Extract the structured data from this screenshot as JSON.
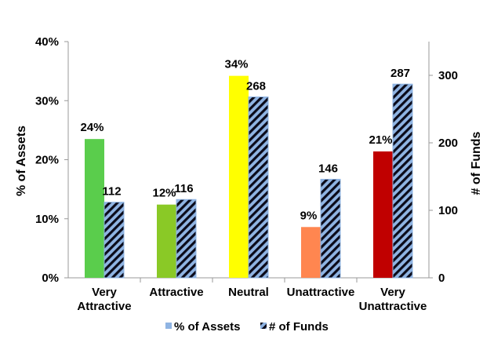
{
  "chart_data": {
    "type": "bar",
    "categories": [
      [
        "Very",
        "Attractive"
      ],
      [
        "Attractive"
      ],
      [
        "Neutral"
      ],
      [
        "Unattractive"
      ],
      [
        "Very",
        "Unattractive"
      ]
    ],
    "series": [
      {
        "name": "% of Assets",
        "axis": "left",
        "values": [
          23.5,
          12.4,
          34.2,
          8.6,
          21.4
        ],
        "labels": [
          "24%",
          "12%",
          "34%",
          "9%",
          "21%"
        ],
        "bar_colors": [
          "#5ACD4C",
          "#8AC926",
          "#FFFF00",
          "#FF8650",
          "#C00000"
        ]
      },
      {
        "name": "# of Funds",
        "axis": "right",
        "values": [
          112,
          116,
          268,
          146,
          287
        ],
        "labels": [
          "112",
          "116",
          "268",
          "146",
          "287"
        ],
        "pattern": "diagonal stripes",
        "stripe_colors": [
          "#8FB4E3",
          "#0B0B1A"
        ]
      }
    ],
    "ylabel": "% of Assets",
    "y2label": "# of Funds",
    "ylim": [
      0,
      40
    ],
    "y2lim": [
      0,
      350
    ],
    "yticks": [
      "0%",
      "10%",
      "20%",
      "30%",
      "40%"
    ],
    "y2ticks": [
      "0",
      "100",
      "200",
      "300"
    ],
    "grid": false,
    "legend_position": "bottom",
    "legend_items": [
      {
        "label": "% of Assets",
        "swatch_color": "#8FB4E3"
      },
      {
        "label": "# of Funds",
        "swatch_color": "#0B0B1A"
      }
    ]
  }
}
